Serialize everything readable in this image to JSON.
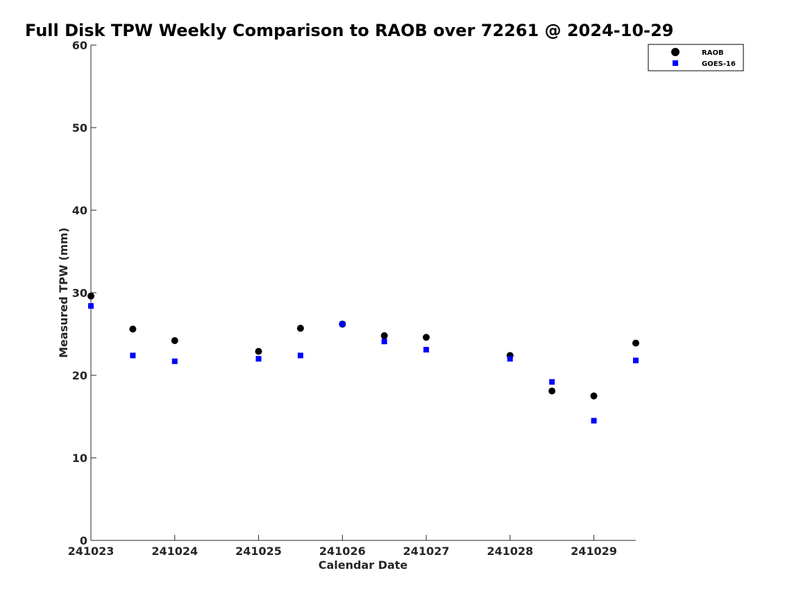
{
  "chart_data": {
    "type": "scatter",
    "title": "Full Disk TPW Weekly Comparison to RAOB over 72261 @ 2024-10-29",
    "xlabel": "Calendar Date",
    "ylabel": "Measured TPW (mm)",
    "xlim": [
      0,
      6.5
    ],
    "ylim": [
      0,
      60
    ],
    "x_ticks": [
      {
        "value": 0,
        "label": "241023"
      },
      {
        "value": 1,
        "label": "241024"
      },
      {
        "value": 2,
        "label": "241025"
      },
      {
        "value": 3,
        "label": "241026"
      },
      {
        "value": 4,
        "label": "241027"
      },
      {
        "value": 5,
        "label": "241028"
      },
      {
        "value": 6,
        "label": "241029"
      }
    ],
    "y_ticks": [
      0,
      10,
      20,
      30,
      40,
      50,
      60
    ],
    "grid": false,
    "legend_position": "top-right",
    "series": [
      {
        "name": "RAOB",
        "marker": "circle",
        "color": "#000000",
        "points": [
          {
            "x": 0,
            "y": 29.6
          },
          {
            "x": 0.5,
            "y": 25.6
          },
          {
            "x": 1,
            "y": 24.2
          },
          {
            "x": 2,
            "y": 22.9
          },
          {
            "x": 2.5,
            "y": 25.7
          },
          {
            "x": 3,
            "y": 26.2
          },
          {
            "x": 3.5,
            "y": 24.8
          },
          {
            "x": 4,
            "y": 24.6
          },
          {
            "x": 5,
            "y": 22.4
          },
          {
            "x": 5.5,
            "y": 18.1
          },
          {
            "x": 6,
            "y": 17.5
          },
          {
            "x": 6.5,
            "y": 23.9
          }
        ]
      },
      {
        "name": "GOES-16",
        "marker": "square",
        "color": "#0000ff",
        "points": [
          {
            "x": 0,
            "y": 28.4
          },
          {
            "x": 0.5,
            "y": 22.4
          },
          {
            "x": 1,
            "y": 21.7
          },
          {
            "x": 2,
            "y": 22.0
          },
          {
            "x": 2.5,
            "y": 22.4
          },
          {
            "x": 3,
            "y": 26.2
          },
          {
            "x": 3.5,
            "y": 24.1
          },
          {
            "x": 4,
            "y": 23.1
          },
          {
            "x": 5,
            "y": 22.0
          },
          {
            "x": 5.5,
            "y": 19.2
          },
          {
            "x": 6,
            "y": 14.5
          },
          {
            "x": 6.5,
            "y": 21.8
          }
        ]
      }
    ]
  }
}
